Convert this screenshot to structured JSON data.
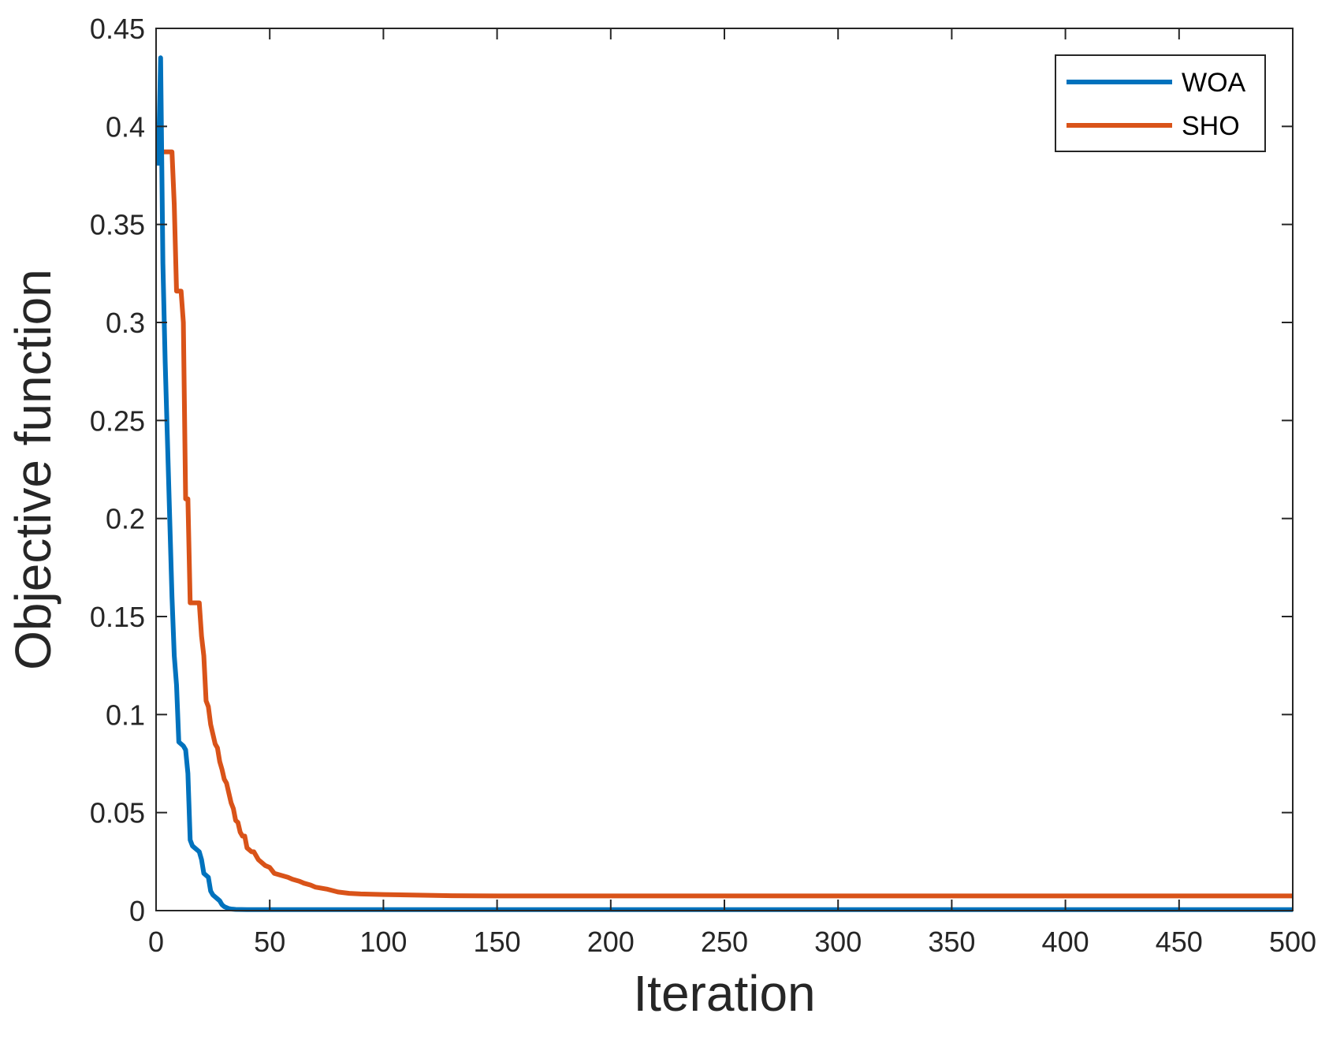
{
  "chart_data": {
    "type": "line",
    "title": "",
    "xlabel": "Iteration",
    "ylabel": "Objective function",
    "xlim": [
      0,
      500
    ],
    "ylim": [
      0,
      0.45
    ],
    "xticks": [
      0,
      50,
      100,
      150,
      200,
      250,
      300,
      350,
      400,
      450,
      500
    ],
    "yticks": [
      0,
      0.05,
      0.1,
      0.15,
      0.2,
      0.25,
      0.3,
      0.35,
      0.4,
      0.45
    ],
    "xtick_labels": [
      "0",
      "50",
      "100",
      "150",
      "200",
      "250",
      "300",
      "350",
      "400",
      "450",
      "500"
    ],
    "ytick_labels": [
      "0",
      "0.05",
      "0.1",
      "0.15",
      "0.2",
      "0.25",
      "0.3",
      "0.35",
      "0.4",
      "0.45"
    ],
    "grid": false,
    "legend_position": "top-right",
    "series": [
      {
        "name": "WOA",
        "color": "#0072BD",
        "x": [
          1,
          2,
          3,
          4,
          5,
          6,
          7,
          8,
          9,
          10,
          11,
          12,
          13,
          14,
          15,
          16,
          17,
          18,
          19,
          20,
          21,
          22,
          23,
          24,
          25,
          26,
          27,
          28,
          29,
          30,
          31,
          32,
          33,
          35,
          40,
          50,
          100,
          200,
          300,
          400,
          500
        ],
        "y": [
          0.38,
          0.435,
          0.33,
          0.28,
          0.24,
          0.2,
          0.16,
          0.13,
          0.115,
          0.086,
          0.085,
          0.084,
          0.082,
          0.07,
          0.036,
          0.033,
          0.032,
          0.031,
          0.03,
          0.026,
          0.019,
          0.018,
          0.017,
          0.01,
          0.008,
          0.007,
          0.006,
          0.005,
          0.003,
          0.002,
          0.0015,
          0.001,
          0.0008,
          0.0006,
          0.0005,
          0.0005,
          0.0005,
          0.0005,
          0.0005,
          0.0005,
          0.0005
        ]
      },
      {
        "name": "SHO",
        "color": "#D95319",
        "x": [
          1,
          2,
          7,
          8,
          9,
          11,
          12,
          13,
          14,
          15,
          16,
          17,
          19,
          20,
          21,
          22,
          23,
          24,
          25,
          26,
          27,
          28,
          29,
          30,
          31,
          32,
          33,
          34,
          35,
          36,
          37,
          38,
          39,
          40,
          42,
          43,
          45,
          48,
          50,
          52,
          55,
          58,
          60,
          63,
          65,
          68,
          70,
          75,
          80,
          85,
          90,
          100,
          110,
          120,
          130,
          150,
          200,
          300,
          400,
          500
        ],
        "y": [
          0.387,
          0.387,
          0.387,
          0.36,
          0.316,
          0.316,
          0.3,
          0.21,
          0.21,
          0.157,
          0.157,
          0.157,
          0.157,
          0.14,
          0.13,
          0.107,
          0.104,
          0.095,
          0.09,
          0.085,
          0.083,
          0.076,
          0.072,
          0.067,
          0.065,
          0.06,
          0.055,
          0.052,
          0.046,
          0.045,
          0.04,
          0.038,
          0.038,
          0.032,
          0.03,
          0.03,
          0.026,
          0.023,
          0.022,
          0.019,
          0.018,
          0.017,
          0.016,
          0.015,
          0.014,
          0.013,
          0.012,
          0.011,
          0.0095,
          0.0088,
          0.0085,
          0.0082,
          0.008,
          0.0078,
          0.0076,
          0.0075,
          0.0075,
          0.0075,
          0.0075,
          0.0075
        ]
      }
    ]
  }
}
